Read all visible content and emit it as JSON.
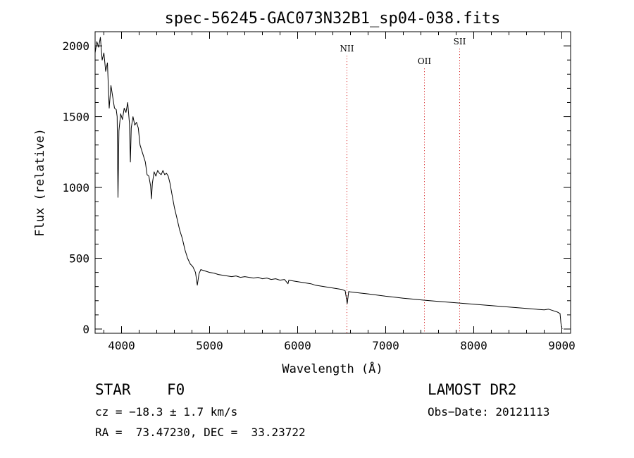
{
  "chart_data": {
    "type": "line",
    "title": "spec-56245-GAC073N32B1_sp04-038.fits",
    "xlabel": "Wavelength (Å)",
    "ylabel": "Flux (relative)",
    "xlim": [
      3700,
      9100
    ],
    "ylim": [
      -30,
      2100
    ],
    "x_ticks": [
      4000,
      5000,
      6000,
      7000,
      8000,
      9000
    ],
    "y_ticks": [
      0,
      500,
      1000,
      1500,
      2000
    ],
    "grid": false,
    "series": [
      {
        "points": [
          [
            3700,
            1950
          ],
          [
            3720,
            2030
          ],
          [
            3740,
            1990
          ],
          [
            3760,
            2060
          ],
          [
            3780,
            1900
          ],
          [
            3800,
            1950
          ],
          [
            3820,
            1820
          ],
          [
            3840,
            1880
          ],
          [
            3860,
            1560
          ],
          [
            3880,
            1720
          ],
          [
            3900,
            1640
          ],
          [
            3920,
            1560
          ],
          [
            3940,
            1550
          ],
          [
            3950,
            1500
          ],
          [
            3960,
            930
          ],
          [
            3970,
            1400
          ],
          [
            3990,
            1520
          ],
          [
            4010,
            1480
          ],
          [
            4030,
            1560
          ],
          [
            4050,
            1530
          ],
          [
            4070,
            1600
          ],
          [
            4090,
            1450
          ],
          [
            4101,
            1180
          ],
          [
            4110,
            1420
          ],
          [
            4130,
            1500
          ],
          [
            4150,
            1440
          ],
          [
            4170,
            1460
          ],
          [
            4190,
            1420
          ],
          [
            4210,
            1300
          ],
          [
            4230,
            1260
          ],
          [
            4250,
            1220
          ],
          [
            4270,
            1180
          ],
          [
            4290,
            1090
          ],
          [
            4310,
            1080
          ],
          [
            4330,
            1010
          ],
          [
            4340,
            920
          ],
          [
            4350,
            1030
          ],
          [
            4370,
            1110
          ],
          [
            4390,
            1080
          ],
          [
            4410,
            1120
          ],
          [
            4430,
            1100
          ],
          [
            4450,
            1090
          ],
          [
            4470,
            1120
          ],
          [
            4490,
            1090
          ],
          [
            4510,
            1100
          ],
          [
            4530,
            1080
          ],
          [
            4550,
            1030
          ],
          [
            4570,
            960
          ],
          [
            4600,
            860
          ],
          [
            4630,
            780
          ],
          [
            4660,
            700
          ],
          [
            4690,
            640
          ],
          [
            4720,
            560
          ],
          [
            4750,
            500
          ],
          [
            4780,
            460
          ],
          [
            4810,
            440
          ],
          [
            4840,
            400
          ],
          [
            4861,
            310
          ],
          [
            4880,
            390
          ],
          [
            4900,
            420
          ],
          [
            4950,
            410
          ],
          [
            5000,
            400
          ],
          [
            5050,
            395
          ],
          [
            5100,
            385
          ],
          [
            5150,
            380
          ],
          [
            5200,
            375
          ],
          [
            5250,
            370
          ],
          [
            5300,
            375
          ],
          [
            5350,
            365
          ],
          [
            5400,
            370
          ],
          [
            5450,
            365
          ],
          [
            5500,
            360
          ],
          [
            5550,
            365
          ],
          [
            5600,
            355
          ],
          [
            5650,
            360
          ],
          [
            5700,
            350
          ],
          [
            5750,
            355
          ],
          [
            5800,
            345
          ],
          [
            5850,
            350
          ],
          [
            5890,
            320
          ],
          [
            5900,
            345
          ],
          [
            5950,
            340
          ],
          [
            6000,
            335
          ],
          [
            6050,
            330
          ],
          [
            6100,
            325
          ],
          [
            6150,
            320
          ],
          [
            6200,
            310
          ],
          [
            6250,
            305
          ],
          [
            6300,
            300
          ],
          [
            6350,
            295
          ],
          [
            6400,
            290
          ],
          [
            6450,
            285
          ],
          [
            6500,
            280
          ],
          [
            6540,
            270
          ],
          [
            6563,
            180
          ],
          [
            6580,
            265
          ],
          [
            6600,
            262
          ],
          [
            6700,
            255
          ],
          [
            6800,
            248
          ],
          [
            6900,
            240
          ],
          [
            7000,
            232
          ],
          [
            7100,
            225
          ],
          [
            7200,
            218
          ],
          [
            7300,
            212
          ],
          [
            7400,
            206
          ],
          [
            7500,
            200
          ],
          [
            7600,
            195
          ],
          [
            7700,
            190
          ],
          [
            7800,
            185
          ],
          [
            7900,
            180
          ],
          [
            8000,
            175
          ],
          [
            8100,
            170
          ],
          [
            8200,
            165
          ],
          [
            8300,
            160
          ],
          [
            8400,
            155
          ],
          [
            8500,
            150
          ],
          [
            8600,
            145
          ],
          [
            8700,
            140
          ],
          [
            8800,
            135
          ],
          [
            8850,
            140
          ],
          [
            8900,
            130
          ],
          [
            8950,
            120
          ],
          [
            8980,
            110
          ],
          [
            8990,
            40
          ],
          [
            9000,
            10
          ],
          [
            9005,
            0
          ]
        ]
      }
    ],
    "annotations": [
      {
        "label": "NII",
        "x": 6560,
        "y": 1960
      },
      {
        "label": "OII",
        "x": 7440,
        "y": 1870
      },
      {
        "label": "SII",
        "x": 7840,
        "y": 2010
      }
    ]
  },
  "info": {
    "class_label": "STAR",
    "subclass_label": "F0",
    "survey": "LAMOST DR2",
    "cz": "cz = −18.3 ± 1.7 km/s",
    "obs_date": "Obs−Date: 20121113",
    "coords": "RA =  73.47230, DEC =  33.23722"
  },
  "colors": {
    "line": "#000000",
    "marker": "#d00000",
    "axes": "#000000"
  }
}
